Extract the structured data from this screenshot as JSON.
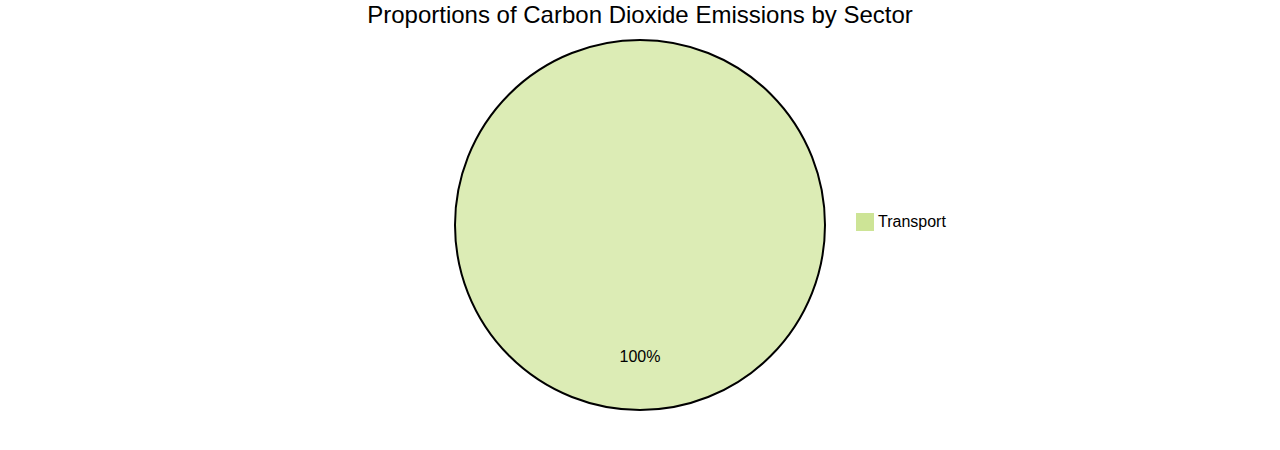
{
  "chart_data": {
    "type": "pie",
    "title": "Proportions of Carbon Dioxide Emissions by Sector",
    "categories": [
      "Transport"
    ],
    "values": [
      100
    ],
    "value_labels": [
      "100%"
    ],
    "colors": [
      "#cde496"
    ],
    "data_labels": true,
    "legend": "right"
  }
}
